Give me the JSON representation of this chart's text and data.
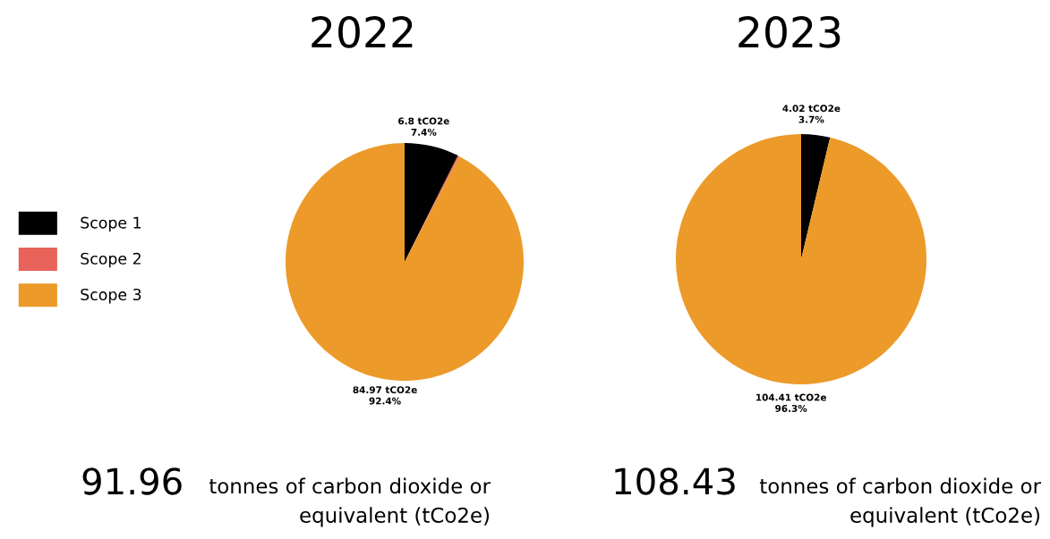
{
  "chart_data": [
    {
      "type": "pie",
      "title": "2022",
      "categories": [
        "Scope 1",
        "Scope 2",
        "Scope 3"
      ],
      "values": [
        6.8,
        0.19,
        84.97
      ],
      "colors": [
        "#000000",
        "#e8635a",
        "#ec9a29"
      ],
      "value_labels": [
        "6.8 tCO2e\n7.4%",
        null,
        "84.97 tCO2e\n92.4%"
      ],
      "annotations": [
        "91.96",
        "tonnes of carbon dioxide or\nequivalent (tCo2e)"
      ],
      "legend": "left"
    },
    {
      "type": "pie",
      "title": "2023",
      "categories": [
        null,
        null,
        null
      ],
      "values": [
        4.02,
        0,
        104.41
      ],
      "colors": [
        "#000000",
        "#e8635a",
        "#ec9a29"
      ],
      "value_labels": [
        "4.02 tCO2e\n3.7%",
        null,
        "104.41 tCO2e\n96.3%"
      ],
      "annotations": [
        "108.43",
        "tonnes of carbon dioxide or\nequivalent (tCo2e)"
      ]
    }
  ]
}
